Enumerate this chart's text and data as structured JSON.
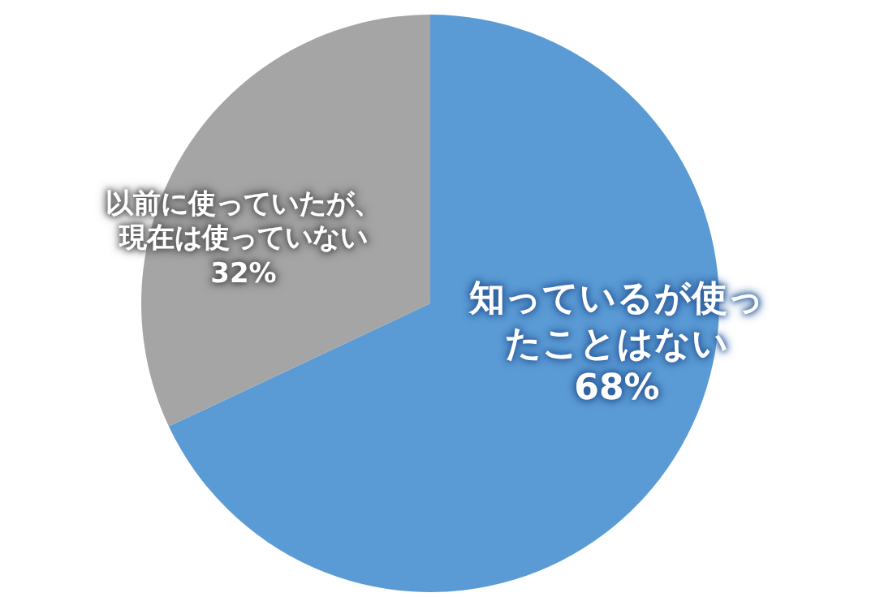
{
  "chart_data": {
    "type": "pie",
    "categories": [
      "知っているが使ったことはない",
      "以前に使っていたが、現在は使っていない"
    ],
    "values": [
      68,
      32
    ],
    "colors": [
      "#5b9bd5",
      "#a5a5a5"
    ],
    "value_labels": [
      "68%",
      "32%"
    ]
  }
}
